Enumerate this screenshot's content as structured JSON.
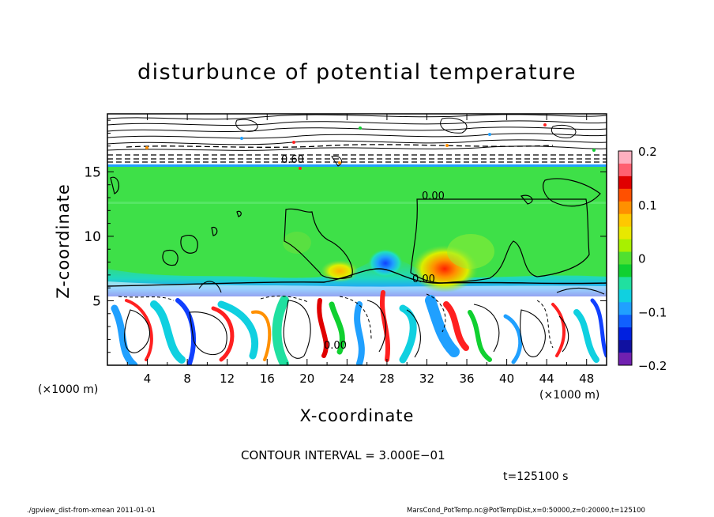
{
  "chart_data": {
    "type": "heatmap",
    "title": "disturbunce of potential temperature",
    "xlabel": "X-coordinate",
    "ylabel": "Z-coordinate",
    "x_unit_label": "(×1000 m)",
    "xlim": [
      0,
      50
    ],
    "ylim": [
      0,
      19.5
    ],
    "x_ticks": [
      4,
      8,
      12,
      16,
      20,
      24,
      28,
      32,
      36,
      40,
      44,
      48
    ],
    "y_ticks": [
      5,
      10,
      15
    ],
    "colorbar": {
      "range": [
        -0.2,
        0.2
      ],
      "ticks": [
        0.2,
        0.1,
        0,
        -0.1,
        -0.2
      ],
      "tick_labels": [
        "0.2",
        "0.1",
        "0",
        "−0.1",
        "−0.2"
      ],
      "colors": [
        "#ffb0c0",
        "#ff6070",
        "#e00000",
        "#ff5000",
        "#ff9000",
        "#ffc800",
        "#e8e800",
        "#a8f000",
        "#50e030",
        "#10d030",
        "#20e0a0",
        "#10d0e0",
        "#20a0ff",
        "#1060ff",
        "#0020e0",
        "#1010a0",
        "#7020b0"
      ]
    },
    "contour_labels": [
      "0.60",
      "0.00",
      "0.00",
      "0.00"
    ],
    "contour_interval_text": "CONTOUR INTERVAL = 3.000E−01",
    "time_text": "t=125100  s"
  },
  "footer": {
    "left": "./gpview_dist-from-xmean  2011-01-01",
    "right": "MarsCond_PotTemp.nc@PotTempDist,x=0:50000,z=0:20000,t=125100"
  }
}
